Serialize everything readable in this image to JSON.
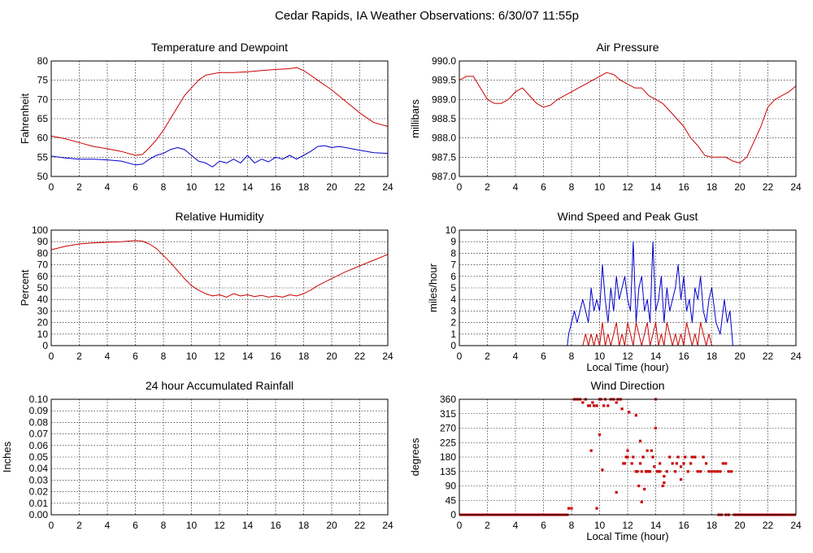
{
  "page": {
    "title": "Cedar Rapids, IA Weather Observations: 6/30/07 11:55p"
  },
  "colors": {
    "red": "#cc0000",
    "blue": "#0000cc",
    "grid": "#000000"
  },
  "chart_data": [
    {
      "id": "temp",
      "type": "line",
      "title": "Temperature and Dewpoint",
      "xlabel": "",
      "ylabel": "Fahrenheit",
      "xlim": [
        0,
        24
      ],
      "ylim": [
        50,
        80
      ],
      "xticks": [
        0,
        2,
        4,
        6,
        8,
        10,
        12,
        14,
        16,
        18,
        20,
        22,
        24
      ],
      "yticks": [
        "50",
        "55",
        "60",
        "65",
        "70",
        "75",
        "80"
      ],
      "grid": true,
      "series": [
        {
          "name": "",
          "color": "#cc0000",
          "x": [
            0,
            1,
            2,
            3,
            4,
            5,
            6,
            6.5,
            7,
            7.5,
            8,
            8.5,
            9,
            9.5,
            10,
            10.5,
            11,
            12,
            13,
            14,
            15,
            16,
            17,
            17.5,
            18,
            18.5,
            19,
            20,
            21,
            22,
            23,
            24
          ],
          "y": [
            60.5,
            59.8,
            58.8,
            57.8,
            57.2,
            56.5,
            55.5,
            55.7,
            57.5,
            59.5,
            62,
            65,
            68,
            71,
            73,
            75,
            76.3,
            77,
            77,
            77.2,
            77.5,
            77.8,
            78,
            78.3,
            77.5,
            76.3,
            75,
            72.5,
            69.5,
            66.5,
            64,
            63
          ]
        },
        {
          "name": "",
          "color": "#0000cc",
          "x": [
            0,
            1,
            2,
            3,
            4,
            5,
            6,
            6.5,
            7,
            7.5,
            8,
            8.5,
            9,
            9.5,
            10,
            10.5,
            11,
            11.5,
            12,
            12.5,
            13,
            13.5,
            14,
            14.5,
            15,
            15.5,
            16,
            16.5,
            17,
            17.5,
            18,
            18.5,
            19,
            19.5,
            20,
            20.5,
            21,
            22,
            23,
            24
          ],
          "y": [
            55.3,
            54.8,
            54.5,
            54.5,
            54.3,
            54,
            53,
            53.2,
            54.5,
            55.5,
            56,
            57,
            57.5,
            57,
            55.5,
            54,
            53.5,
            52.5,
            54,
            53.5,
            54.5,
            53.5,
            55.5,
            53.5,
            54.5,
            53.8,
            55,
            54.5,
            55.5,
            54.5,
            55.5,
            56.5,
            57.8,
            58,
            57.5,
            57.8,
            57.5,
            56.8,
            56.2,
            56
          ]
        }
      ]
    },
    {
      "id": "pressure",
      "type": "line",
      "title": "Air Pressure",
      "xlabel": "",
      "ylabel": "millibars",
      "xlim": [
        0,
        24
      ],
      "ylim": [
        987.0,
        990.0
      ],
      "xticks": [
        0,
        2,
        4,
        6,
        8,
        10,
        12,
        14,
        16,
        18,
        20,
        22,
        24
      ],
      "yticks": [
        "987.0",
        "987.5",
        "988.0",
        "988.5",
        "989.0",
        "989.5",
        "990.0"
      ],
      "grid": true,
      "series": [
        {
          "name": "",
          "color": "#cc0000",
          "x": [
            0,
            0.5,
            1,
            1.5,
            2,
            2.5,
            3,
            3.5,
            4,
            4.5,
            5,
            5.5,
            6,
            6.5,
            7,
            7.5,
            8,
            8.5,
            9,
            9.5,
            10,
            10.5,
            11,
            11.5,
            12,
            12.5,
            13,
            13.5,
            14,
            14.5,
            15,
            15.5,
            16,
            16.5,
            17,
            17.5,
            18,
            18.5,
            19,
            19.5,
            20,
            20.5,
            21,
            21.5,
            22,
            22.5,
            23,
            23.5,
            24
          ],
          "y": [
            989.5,
            989.6,
            989.6,
            989.3,
            989.0,
            988.9,
            988.9,
            989.0,
            989.2,
            989.3,
            989.1,
            988.9,
            988.8,
            988.85,
            989.0,
            989.1,
            989.2,
            989.3,
            989.4,
            989.5,
            989.6,
            989.7,
            989.65,
            989.5,
            989.4,
            989.3,
            989.3,
            989.1,
            989.0,
            988.9,
            988.7,
            988.5,
            988.3,
            988.0,
            987.8,
            987.55,
            987.5,
            987.5,
            987.5,
            987.4,
            987.35,
            987.5,
            987.9,
            988.3,
            988.8,
            989.0,
            989.1,
            989.2,
            989.35
          ]
        }
      ]
    },
    {
      "id": "humidity",
      "type": "line",
      "title": "Relative Humidity",
      "xlabel": "",
      "ylabel": "Percent",
      "xlim": [
        0,
        24
      ],
      "ylim": [
        0,
        100
      ],
      "xticks": [
        0,
        2,
        4,
        6,
        8,
        10,
        12,
        14,
        16,
        18,
        20,
        22,
        24
      ],
      "yticks": [
        "0",
        "10",
        "20",
        "30",
        "40",
        "50",
        "60",
        "70",
        "80",
        "90",
        "100"
      ],
      "grid": true,
      "series": [
        {
          "name": "",
          "color": "#cc0000",
          "x": [
            0,
            1,
            2,
            3,
            4,
            5,
            6,
            6.5,
            7,
            7.5,
            8,
            8.5,
            9,
            9.5,
            10,
            10.5,
            11,
            11.5,
            12,
            12.5,
            13,
            13.5,
            14,
            14.5,
            15,
            15.5,
            16,
            16.5,
            17,
            17.5,
            18,
            18.5,
            19,
            20,
            21,
            22,
            23,
            24
          ],
          "y": [
            83,
            86,
            88,
            89,
            89.5,
            90,
            91,
            90.5,
            88,
            84,
            78,
            72,
            65,
            58,
            52,
            48,
            45,
            43,
            44,
            42,
            45,
            43,
            44,
            42.5,
            43.5,
            42,
            43,
            42,
            44,
            43,
            45,
            48,
            52,
            58,
            64,
            69,
            74,
            79
          ]
        }
      ]
    },
    {
      "id": "wind-speed",
      "type": "line",
      "title": "Wind Speed and Peak Gust",
      "xlabel": "Local Time (hour)",
      "ylabel": "miles/hour",
      "xlim": [
        0,
        24
      ],
      "ylim": [
        0,
        10
      ],
      "xticks": [
        0,
        2,
        4,
        6,
        8,
        10,
        12,
        14,
        16,
        18,
        20,
        22,
        24
      ],
      "yticks": [
        "0",
        "1",
        "2",
        "3",
        "4",
        "5",
        "6",
        "7",
        "8",
        "9",
        "10"
      ],
      "grid": true,
      "series": [
        {
          "name": "",
          "color": "#0000cc",
          "x": [
            0,
            7.7,
            7.8,
            8.0,
            8.2,
            8.4,
            8.6,
            8.8,
            9.0,
            9.2,
            9.4,
            9.6,
            9.8,
            10.0,
            10.2,
            10.4,
            10.6,
            10.8,
            11.0,
            11.2,
            11.4,
            11.6,
            11.8,
            12.0,
            12.2,
            12.4,
            12.6,
            12.8,
            13.0,
            13.2,
            13.4,
            13.6,
            13.8,
            14.0,
            14.2,
            14.4,
            14.6,
            14.8,
            15.0,
            15.2,
            15.4,
            15.6,
            15.8,
            16.0,
            16.2,
            16.4,
            16.6,
            16.8,
            17.0,
            17.2,
            17.4,
            17.6,
            17.8,
            18.0,
            18.3,
            18.6,
            18.9,
            19.1,
            19.3,
            19.5,
            24
          ],
          "y": [
            0,
            0,
            1,
            2,
            3,
            2,
            3,
            4,
            3,
            2,
            5,
            3,
            4,
            3,
            7,
            4,
            2,
            5,
            3,
            6,
            4,
            5,
            6,
            4,
            3,
            9,
            2,
            5,
            6,
            3,
            4,
            2,
            9,
            3,
            4,
            6,
            2,
            5,
            3,
            4,
            5,
            7,
            4,
            6,
            3,
            4,
            2,
            5,
            4,
            6,
            3,
            2,
            4,
            5,
            2,
            1,
            4,
            2,
            3,
            0,
            0
          ]
        },
        {
          "name": "",
          "color": "#cc0000",
          "x": [
            0,
            8.8,
            9.0,
            9.2,
            9.4,
            9.6,
            9.8,
            10.0,
            10.2,
            10.4,
            10.6,
            10.8,
            11.0,
            11.2,
            11.4,
            11.6,
            11.8,
            12.0,
            12.2,
            12.4,
            12.6,
            12.8,
            13.0,
            13.2,
            13.4,
            13.6,
            13.8,
            14.0,
            14.2,
            14.4,
            14.6,
            14.8,
            15.0,
            15.2,
            15.4,
            15.6,
            15.8,
            16.0,
            16.2,
            16.4,
            16.6,
            16.8,
            17.0,
            17.2,
            17.4,
            17.6,
            17.8,
            18.0,
            18.4,
            24
          ],
          "y": [
            0,
            0,
            1,
            0,
            1,
            0,
            1,
            0,
            2,
            0,
            1,
            0,
            1,
            2,
            0,
            1,
            0,
            2,
            1,
            0,
            2,
            1,
            0,
            1,
            2,
            0,
            1,
            2,
            0,
            1,
            0,
            2,
            1,
            0,
            1,
            0,
            1,
            0,
            2,
            1,
            0,
            1,
            0,
            2,
            1,
            0,
            1,
            0,
            0,
            0
          ]
        }
      ]
    },
    {
      "id": "rainfall",
      "type": "line",
      "title": "24 hour Accumulated Rainfall",
      "xlabel": "",
      "ylabel": "Inches",
      "xlim": [
        0,
        24
      ],
      "ylim": [
        0,
        0.1
      ],
      "xticks": [
        0,
        2,
        4,
        6,
        8,
        10,
        12,
        14,
        16,
        18,
        20,
        22,
        24
      ],
      "yticks": [
        "0.00",
        "0.01",
        "0.02",
        "0.03",
        "0.04",
        "0.05",
        "0.06",
        "0.07",
        "0.08",
        "0.09",
        "0.10"
      ],
      "grid": true,
      "series": [
        {
          "name": "",
          "color": "#cc0000",
          "x": [
            0,
            24
          ],
          "y": [
            0,
            0
          ]
        }
      ]
    },
    {
      "id": "wind-direction",
      "type": "scatter",
      "title": "Wind Direction",
      "xlabel": "Local Time (hour)",
      "ylabel": "degrees",
      "xlim": [
        0,
        24
      ],
      "ylim": [
        0,
        360
      ],
      "xticks": [
        0,
        2,
        4,
        6,
        8,
        10,
        12,
        14,
        16,
        18,
        20,
        22,
        24
      ],
      "yticks": [
        "0",
        "45",
        "90",
        "135",
        "180",
        "225",
        "270",
        "315",
        "360"
      ],
      "grid": true,
      "series": [
        {
          "name": "",
          "color": "#cc0000",
          "x": [
            7.8,
            8.0,
            8.2,
            8.4,
            8.6,
            8.8,
            9.0,
            9.2,
            9.3,
            9.5,
            9.6,
            9.8,
            10.0,
            10.1,
            10.3,
            10.4,
            10.6,
            10.8,
            11.0,
            11.2,
            11.3,
            11.5,
            11.6,
            11.7,
            11.8,
            11.9,
            12.0,
            12.1,
            12.3,
            12.4,
            12.6,
            12.7,
            12.8,
            12.9,
            13.0,
            13.1,
            13.3,
            13.4,
            13.5,
            13.6,
            13.8,
            13.9,
            14.0,
            14.1,
            14.2,
            14.3,
            14.5,
            14.6,
            14.8,
            15.0,
            15.2,
            15.4,
            15.5,
            15.6,
            15.8,
            16.0,
            16.1,
            16.3,
            16.5,
            16.6,
            16.8,
            17.0,
            17.2,
            17.4,
            17.6,
            17.8,
            18.0,
            18.2,
            18.4,
            18.6,
            18.8,
            19.0,
            19.2,
            19.4,
            9.8,
            10.0,
            11.2,
            12.6,
            12.9,
            13.2,
            13.7,
            14.6,
            15.8,
            9.4,
            10.2,
            12.0,
            13.4,
            13.0,
            14.0,
            14.3,
            18.5,
            18.7,
            19.0,
            19.2
          ],
          "y": [
            20,
            20,
            360,
            360,
            360,
            350,
            360,
            340,
            340,
            350,
            340,
            340,
            360,
            360,
            340,
            360,
            340,
            360,
            360,
            350,
            360,
            360,
            330,
            160,
            160,
            180,
            180,
            320,
            160,
            180,
            135,
            135,
            90,
            160,
            135,
            180,
            135,
            135,
            135,
            135,
            180,
            150,
            360,
            135,
            135,
            135,
            90,
            100,
            135,
            180,
            160,
            135,
            160,
            180,
            110,
            160,
            180,
            135,
            160,
            180,
            180,
            135,
            135,
            180,
            160,
            135,
            135,
            135,
            135,
            135,
            160,
            160,
            135,
            135,
            20,
            250,
            70,
            310,
            230,
            80,
            200,
            120,
            150,
            200,
            140,
            200,
            200,
            40,
            270,
            160,
            0,
            0,
            0,
            0
          ]
        },
        {
          "name": "",
          "color": "#cc0000",
          "x": [
            0,
            7.8
          ],
          "y": [
            0,
            0
          ]
        },
        {
          "name": "",
          "color": "#cc0000",
          "x": [
            19.5,
            24
          ],
          "y": [
            0,
            0
          ]
        }
      ]
    }
  ]
}
